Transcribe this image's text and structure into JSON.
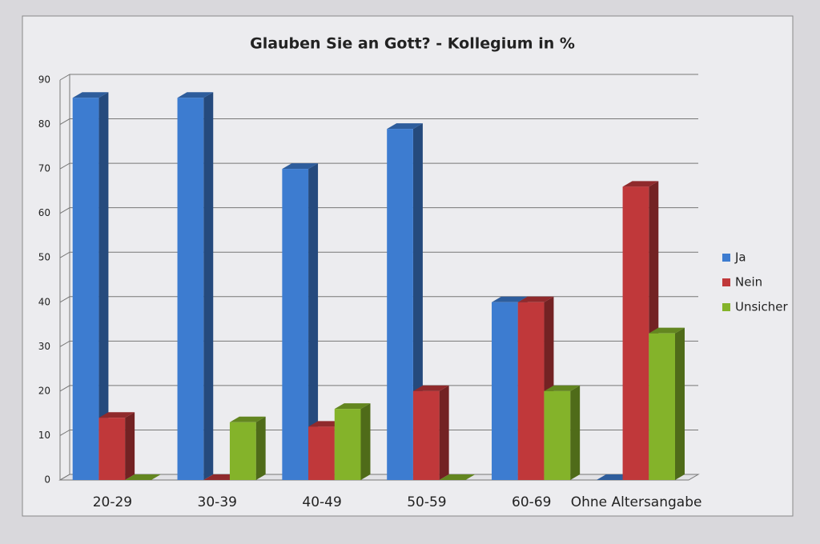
{
  "chart_data": {
    "type": "bar",
    "title": "Glauben Sie an Gott? - Kollegium in %",
    "categories": [
      "20-29",
      "30-39",
      "40-49",
      "50-59",
      "60-69",
      "Ohne Altersangabe"
    ],
    "series": [
      {
        "name": "Ja",
        "color": "#3d7cd0",
        "values": [
          86,
          86,
          70,
          79,
          40,
          0
        ]
      },
      {
        "name": "Nein",
        "color": "#c0383a",
        "values": [
          14,
          0,
          12,
          20,
          40,
          66
        ]
      },
      {
        "name": "Unsicher",
        "color": "#84b32a",
        "values": [
          0,
          13,
          16,
          0,
          20,
          33
        ]
      }
    ],
    "ylim": [
      0,
      90
    ],
    "yticks": [
      0,
      10,
      20,
      30,
      40,
      50,
      60,
      70,
      80,
      90
    ],
    "grid": true,
    "legend": "right"
  }
}
